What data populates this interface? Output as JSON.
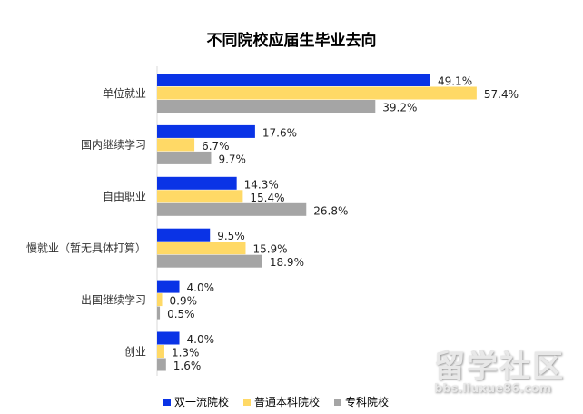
{
  "chart_data": {
    "type": "bar",
    "orientation": "horizontal",
    "title": "不同院校应届生毕业去向",
    "categories": [
      "单位就业",
      "国内继续学习",
      "自由职业",
      "慢就业（暂无具体打算）",
      "出国继续学习",
      "创业"
    ],
    "series": [
      {
        "name": "双一流院校",
        "color": "#0A33E6",
        "values": [
          49.1,
          17.6,
          14.3,
          9.5,
          4.0,
          4.0
        ]
      },
      {
        "name": "普通本科院校",
        "color": "#FFD966",
        "values": [
          57.4,
          6.7,
          15.4,
          15.9,
          0.9,
          1.3
        ]
      },
      {
        "name": "专科院校",
        "color": "#A5A5A5",
        "values": [
          39.2,
          9.7,
          26.8,
          18.9,
          0.5,
          1.6
        ]
      }
    ],
    "value_suffix": "%",
    "legend_position": "bottom",
    "grid": false
  },
  "watermark": {
    "main": "留学社区",
    "sub": "bbs.liuxue86.com"
  }
}
